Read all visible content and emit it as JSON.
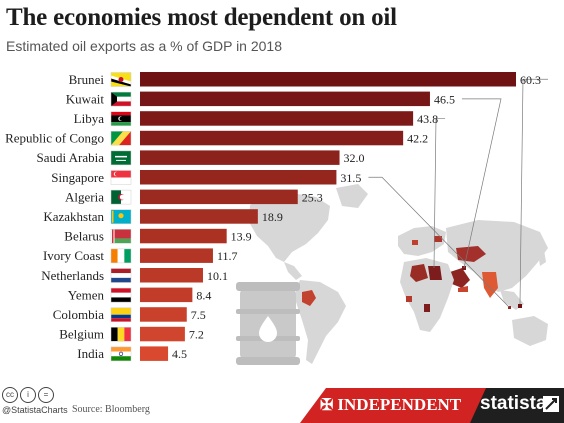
{
  "header": {
    "title": "The economies most dependent on oil",
    "subtitle": "Estimated oil exports as a % of GDP in 2018"
  },
  "colors": {
    "bar_darkest": "#6e1214",
    "bar_lightest": "#d8492f",
    "map_land": "#d7d7d7",
    "oil_barrel": "#c9c9c9",
    "footer_red": "#d02322",
    "footer_dark": "#1f1f1f"
  },
  "chart_data": {
    "type": "bar",
    "orientation": "horizontal",
    "categories": [
      "Brunei",
      "Kuwait",
      "Libya",
      "Republic of Congo",
      "Saudi Arabia",
      "Singapore",
      "Algeria",
      "Kazakhstan",
      "Belarus",
      "Ivory Coast",
      "Netherlands",
      "Yemen",
      "Colombia",
      "Belgium",
      "India"
    ],
    "values": [
      60.3,
      46.5,
      43.8,
      42.2,
      32.0,
      31.5,
      25.3,
      18.9,
      13.9,
      11.7,
      10.1,
      8.4,
      7.5,
      7.2,
      4.5
    ],
    "value_labels": [
      "60.3",
      "46.5",
      "43.8",
      "42.2",
      "32.0",
      "31.5",
      "25.3",
      "18.9",
      "13.9",
      "11.7",
      "10.1",
      "8.4",
      "7.5",
      "7.2",
      "4.5"
    ],
    "flag_icons": [
      "brunei-flag-icon",
      "kuwait-flag-icon",
      "libya-flag-icon",
      "congo-flag-icon",
      "saudi-arabia-flag-icon",
      "singapore-flag-icon",
      "algeria-flag-icon",
      "kazakhstan-flag-icon",
      "belarus-flag-icon",
      "ivory-coast-flag-icon",
      "netherlands-flag-icon",
      "yemen-flag-icon",
      "colombia-flag-icon",
      "belgium-flag-icon",
      "india-flag-icon"
    ],
    "xlim": [
      0,
      62
    ],
    "grid": false,
    "legend": "none",
    "title": "The economies most dependent on oil",
    "subtitle": "Estimated oil exports as a % of GDP in 2018",
    "decorations": [
      "world-map-highlighting-listed-countries",
      "oil-barrel-icon"
    ]
  },
  "footer": {
    "handle": "@StatistaCharts",
    "source": "Source: Bloomberg",
    "partner": "INDEPENDENT",
    "brand": "statista",
    "license_icons": [
      "creative-commons-icon",
      "attribution-icon",
      "no-derivatives-icon"
    ]
  }
}
